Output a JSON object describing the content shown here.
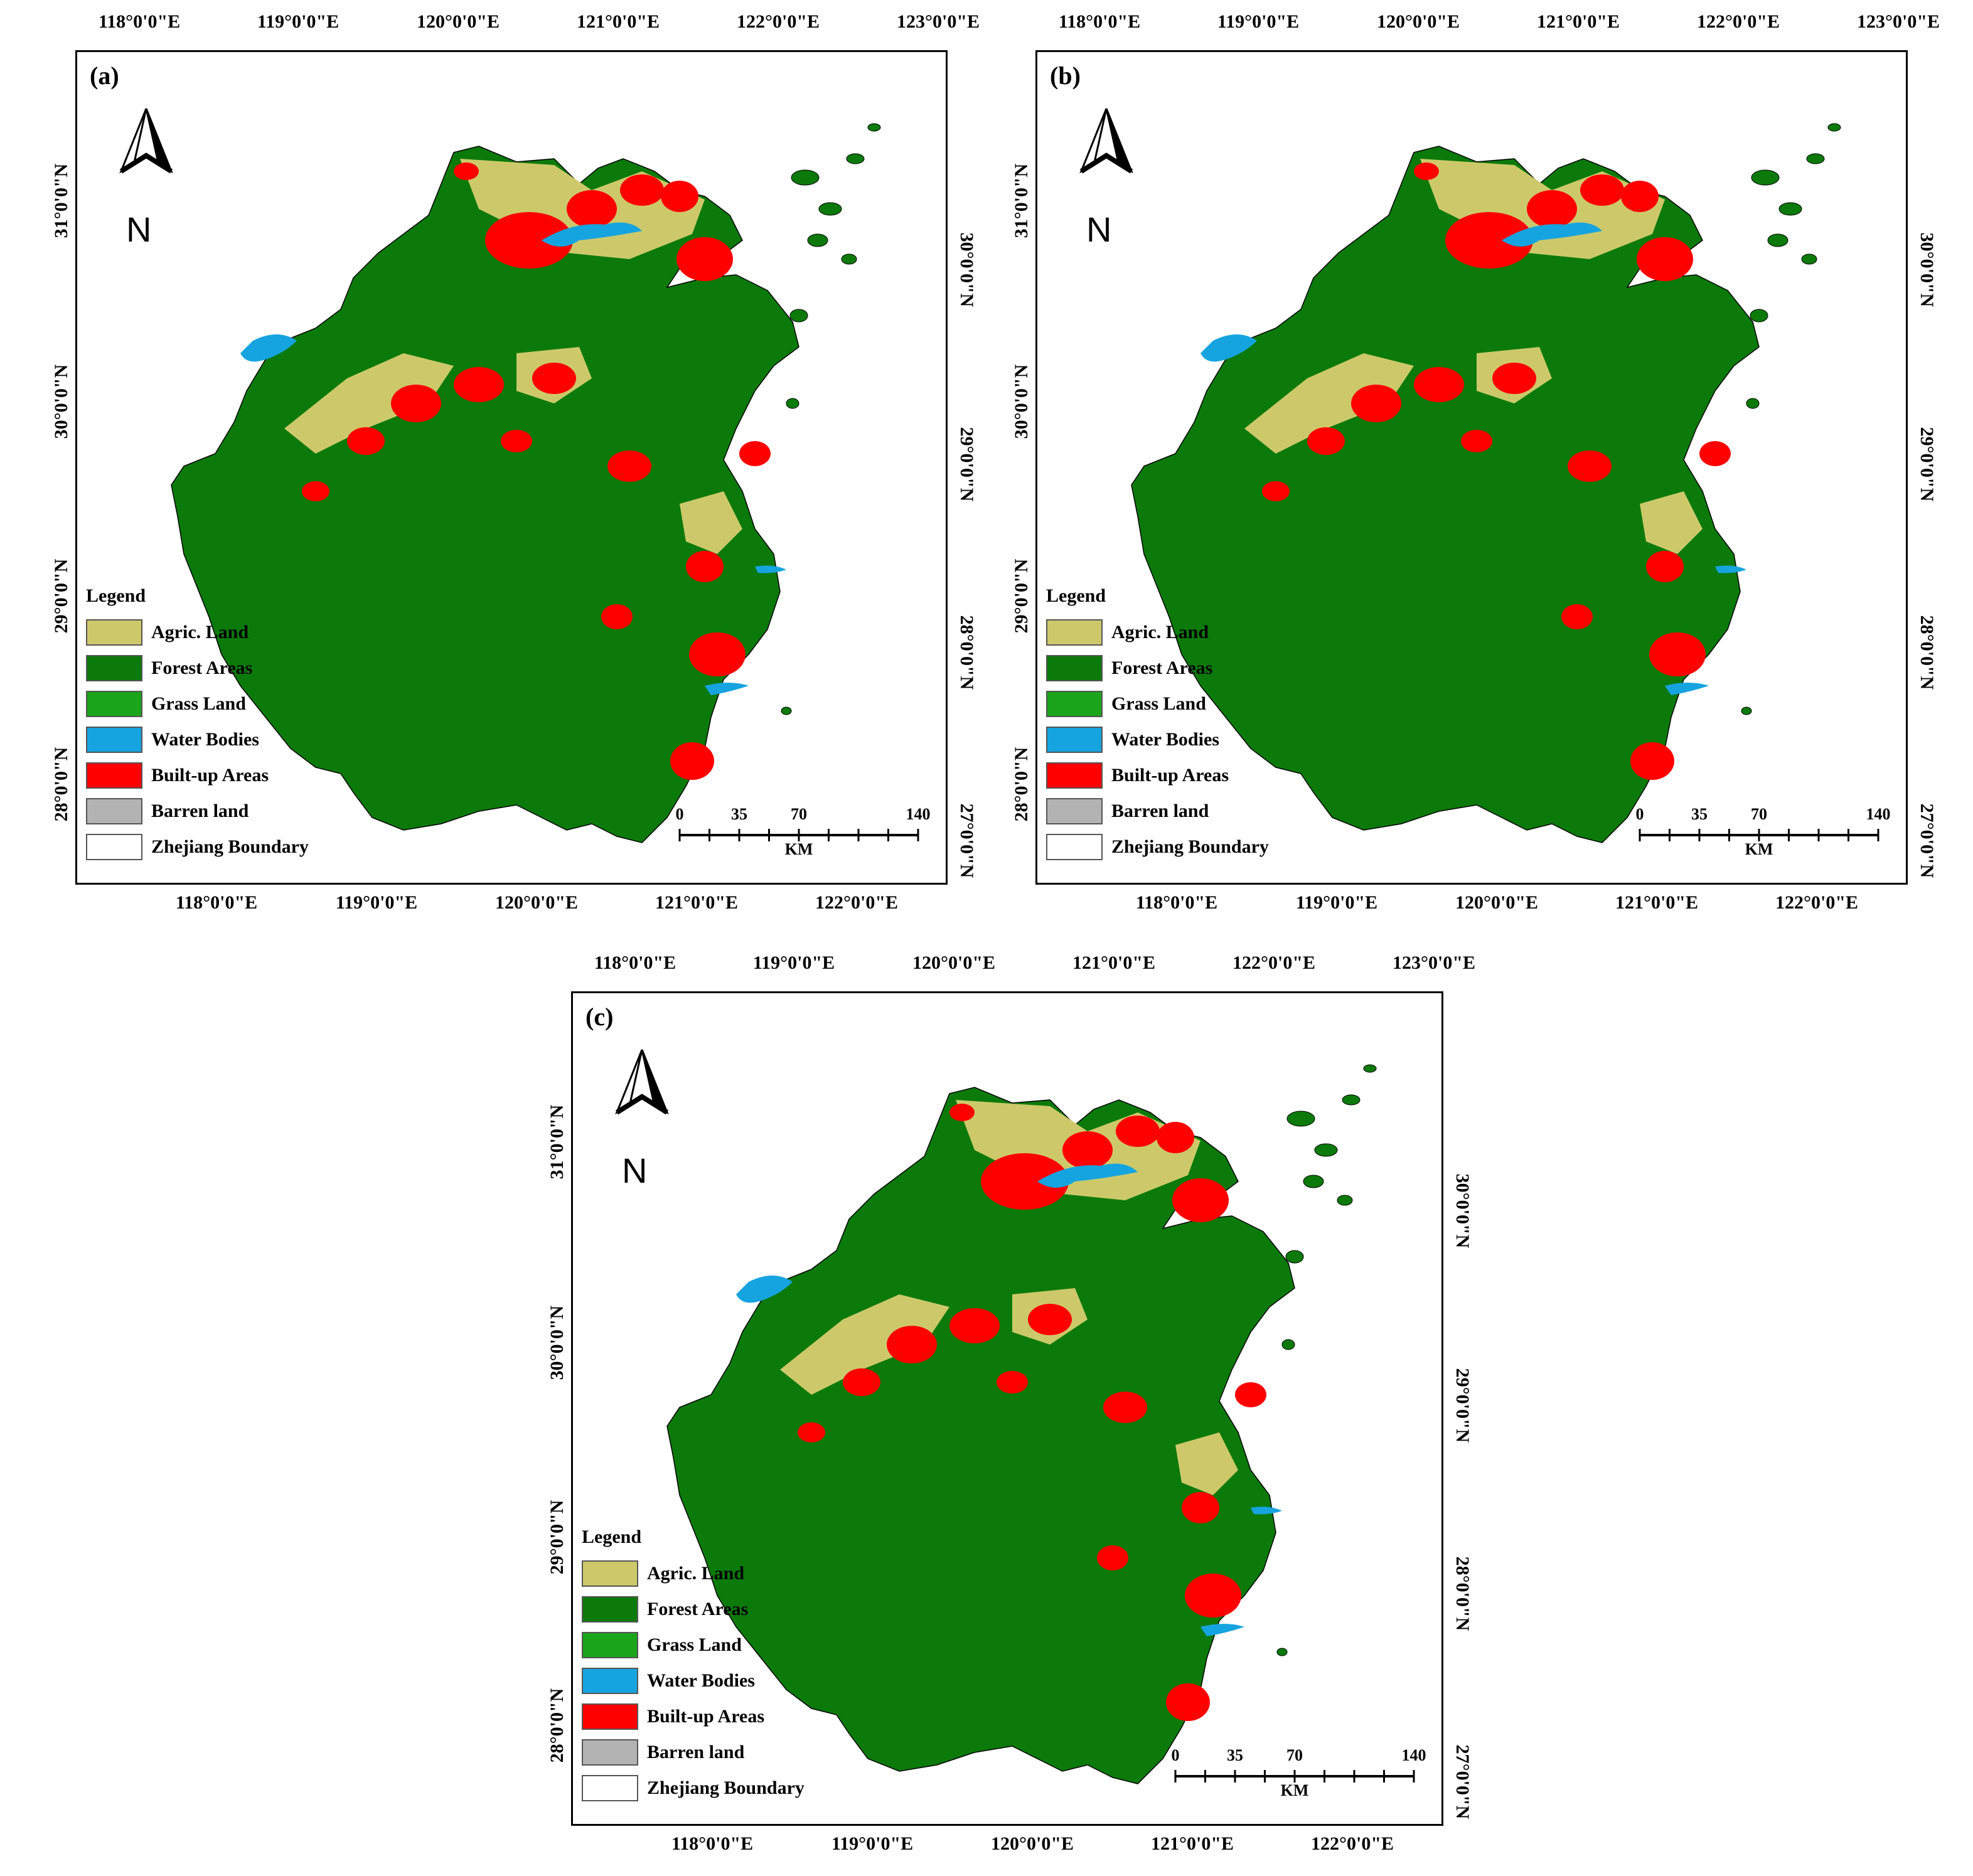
{
  "panels": [
    {
      "id": "a",
      "label": "(a)"
    },
    {
      "id": "b",
      "label": "(b)"
    },
    {
      "id": "c",
      "label": "(c)"
    }
  ],
  "axes": {
    "top_ticks": [
      "118°0'0\"E",
      "119°0'0\"E",
      "120°0'0\"E",
      "121°0'0\"E",
      "122°0'0\"E",
      "123°0'0\"E"
    ],
    "bottom_ticks": [
      "118°0'0\"E",
      "119°0'0\"E",
      "120°0'0\"E",
      "121°0'0\"E",
      "122°0'0\"E"
    ],
    "left_ticks": [
      "31°0'0\"N",
      "30°0'0\"N",
      "29°0'0\"N",
      "28°0'0\"N"
    ],
    "right_ticks": [
      "30°0'0\"N",
      "29°0'0\"N",
      "28°0'0\"N",
      "27°0'0\"N"
    ]
  },
  "north_arrow": {
    "letter": "N"
  },
  "legend": {
    "title": "Legend",
    "items": [
      {
        "label": "Agric. Land",
        "color": "#cdc96a"
      },
      {
        "label": "Forest Areas",
        "color": "#0b7a0b"
      },
      {
        "label": "Grass Land",
        "color": "#1aa51a"
      },
      {
        "label": "Water Bodies",
        "color": "#16a4e0"
      },
      {
        "label": "Built-up Areas",
        "color": "#ff0000"
      },
      {
        "label": "Barren land",
        "color": "#b3b3b3"
      },
      {
        "label": "Zhejiang Boundary",
        "color": "#ffffff"
      }
    ]
  },
  "scale_bar": {
    "ticks": [
      "0",
      "35",
      "70",
      "140"
    ],
    "unit": "KM"
  }
}
